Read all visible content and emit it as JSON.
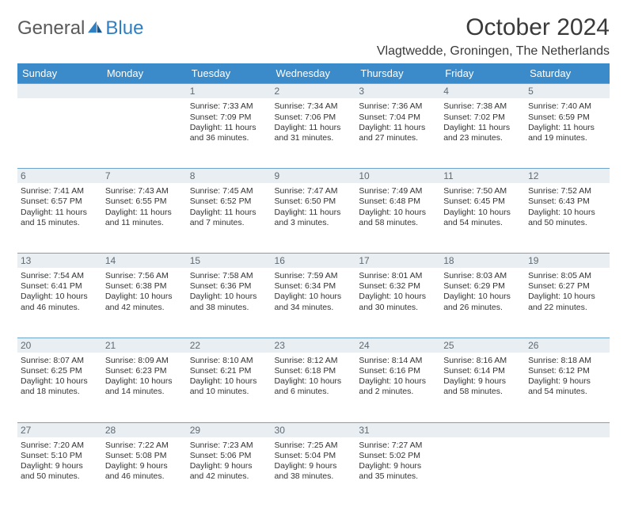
{
  "brand": {
    "part1": "General",
    "part2": "Blue"
  },
  "title": "October 2024",
  "location": "Vlagtwedde, Groningen, The Netherlands",
  "colors": {
    "header_bg": "#3b8bca",
    "header_text": "#ffffff",
    "daynum_bg": "#e9eef2",
    "daynum_text": "#5f6a72",
    "daynum_border": "#6fa5cc",
    "body_text": "#333333",
    "logo_gray": "#5a5a5a",
    "logo_blue": "#2f7fc2"
  },
  "weekdays": [
    "Sunday",
    "Monday",
    "Tuesday",
    "Wednesday",
    "Thursday",
    "Friday",
    "Saturday"
  ],
  "weeks": [
    {
      "nums": [
        "",
        "",
        "1",
        "2",
        "3",
        "4",
        "5"
      ],
      "cells": [
        null,
        null,
        {
          "sunrise": "Sunrise: 7:33 AM",
          "sunset": "Sunset: 7:09 PM",
          "day1": "Daylight: 11 hours",
          "day2": "and 36 minutes."
        },
        {
          "sunrise": "Sunrise: 7:34 AM",
          "sunset": "Sunset: 7:06 PM",
          "day1": "Daylight: 11 hours",
          "day2": "and 31 minutes."
        },
        {
          "sunrise": "Sunrise: 7:36 AM",
          "sunset": "Sunset: 7:04 PM",
          "day1": "Daylight: 11 hours",
          "day2": "and 27 minutes."
        },
        {
          "sunrise": "Sunrise: 7:38 AM",
          "sunset": "Sunset: 7:02 PM",
          "day1": "Daylight: 11 hours",
          "day2": "and 23 minutes."
        },
        {
          "sunrise": "Sunrise: 7:40 AM",
          "sunset": "Sunset: 6:59 PM",
          "day1": "Daylight: 11 hours",
          "day2": "and 19 minutes."
        }
      ]
    },
    {
      "nums": [
        "6",
        "7",
        "8",
        "9",
        "10",
        "11",
        "12"
      ],
      "cells": [
        {
          "sunrise": "Sunrise: 7:41 AM",
          "sunset": "Sunset: 6:57 PM",
          "day1": "Daylight: 11 hours",
          "day2": "and 15 minutes."
        },
        {
          "sunrise": "Sunrise: 7:43 AM",
          "sunset": "Sunset: 6:55 PM",
          "day1": "Daylight: 11 hours",
          "day2": "and 11 minutes."
        },
        {
          "sunrise": "Sunrise: 7:45 AM",
          "sunset": "Sunset: 6:52 PM",
          "day1": "Daylight: 11 hours",
          "day2": "and 7 minutes."
        },
        {
          "sunrise": "Sunrise: 7:47 AM",
          "sunset": "Sunset: 6:50 PM",
          "day1": "Daylight: 11 hours",
          "day2": "and 3 minutes."
        },
        {
          "sunrise": "Sunrise: 7:49 AM",
          "sunset": "Sunset: 6:48 PM",
          "day1": "Daylight: 10 hours",
          "day2": "and 58 minutes."
        },
        {
          "sunrise": "Sunrise: 7:50 AM",
          "sunset": "Sunset: 6:45 PM",
          "day1": "Daylight: 10 hours",
          "day2": "and 54 minutes."
        },
        {
          "sunrise": "Sunrise: 7:52 AM",
          "sunset": "Sunset: 6:43 PM",
          "day1": "Daylight: 10 hours",
          "day2": "and 50 minutes."
        }
      ]
    },
    {
      "nums": [
        "13",
        "14",
        "15",
        "16",
        "17",
        "18",
        "19"
      ],
      "cells": [
        {
          "sunrise": "Sunrise: 7:54 AM",
          "sunset": "Sunset: 6:41 PM",
          "day1": "Daylight: 10 hours",
          "day2": "and 46 minutes."
        },
        {
          "sunrise": "Sunrise: 7:56 AM",
          "sunset": "Sunset: 6:38 PM",
          "day1": "Daylight: 10 hours",
          "day2": "and 42 minutes."
        },
        {
          "sunrise": "Sunrise: 7:58 AM",
          "sunset": "Sunset: 6:36 PM",
          "day1": "Daylight: 10 hours",
          "day2": "and 38 minutes."
        },
        {
          "sunrise": "Sunrise: 7:59 AM",
          "sunset": "Sunset: 6:34 PM",
          "day1": "Daylight: 10 hours",
          "day2": "and 34 minutes."
        },
        {
          "sunrise": "Sunrise: 8:01 AM",
          "sunset": "Sunset: 6:32 PM",
          "day1": "Daylight: 10 hours",
          "day2": "and 30 minutes."
        },
        {
          "sunrise": "Sunrise: 8:03 AM",
          "sunset": "Sunset: 6:29 PM",
          "day1": "Daylight: 10 hours",
          "day2": "and 26 minutes."
        },
        {
          "sunrise": "Sunrise: 8:05 AM",
          "sunset": "Sunset: 6:27 PM",
          "day1": "Daylight: 10 hours",
          "day2": "and 22 minutes."
        }
      ]
    },
    {
      "nums": [
        "20",
        "21",
        "22",
        "23",
        "24",
        "25",
        "26"
      ],
      "cells": [
        {
          "sunrise": "Sunrise: 8:07 AM",
          "sunset": "Sunset: 6:25 PM",
          "day1": "Daylight: 10 hours",
          "day2": "and 18 minutes."
        },
        {
          "sunrise": "Sunrise: 8:09 AM",
          "sunset": "Sunset: 6:23 PM",
          "day1": "Daylight: 10 hours",
          "day2": "and 14 minutes."
        },
        {
          "sunrise": "Sunrise: 8:10 AM",
          "sunset": "Sunset: 6:21 PM",
          "day1": "Daylight: 10 hours",
          "day2": "and 10 minutes."
        },
        {
          "sunrise": "Sunrise: 8:12 AM",
          "sunset": "Sunset: 6:18 PM",
          "day1": "Daylight: 10 hours",
          "day2": "and 6 minutes."
        },
        {
          "sunrise": "Sunrise: 8:14 AM",
          "sunset": "Sunset: 6:16 PM",
          "day1": "Daylight: 10 hours",
          "day2": "and 2 minutes."
        },
        {
          "sunrise": "Sunrise: 8:16 AM",
          "sunset": "Sunset: 6:14 PM",
          "day1": "Daylight: 9 hours",
          "day2": "and 58 minutes."
        },
        {
          "sunrise": "Sunrise: 8:18 AM",
          "sunset": "Sunset: 6:12 PM",
          "day1": "Daylight: 9 hours",
          "day2": "and 54 minutes."
        }
      ]
    },
    {
      "nums": [
        "27",
        "28",
        "29",
        "30",
        "31",
        "",
        ""
      ],
      "cells": [
        {
          "sunrise": "Sunrise: 7:20 AM",
          "sunset": "Sunset: 5:10 PM",
          "day1": "Daylight: 9 hours",
          "day2": "and 50 minutes."
        },
        {
          "sunrise": "Sunrise: 7:22 AM",
          "sunset": "Sunset: 5:08 PM",
          "day1": "Daylight: 9 hours",
          "day2": "and 46 minutes."
        },
        {
          "sunrise": "Sunrise: 7:23 AM",
          "sunset": "Sunset: 5:06 PM",
          "day1": "Daylight: 9 hours",
          "day2": "and 42 minutes."
        },
        {
          "sunrise": "Sunrise: 7:25 AM",
          "sunset": "Sunset: 5:04 PM",
          "day1": "Daylight: 9 hours",
          "day2": "and 38 minutes."
        },
        {
          "sunrise": "Sunrise: 7:27 AM",
          "sunset": "Sunset: 5:02 PM",
          "day1": "Daylight: 9 hours",
          "day2": "and 35 minutes."
        },
        null,
        null
      ]
    }
  ]
}
